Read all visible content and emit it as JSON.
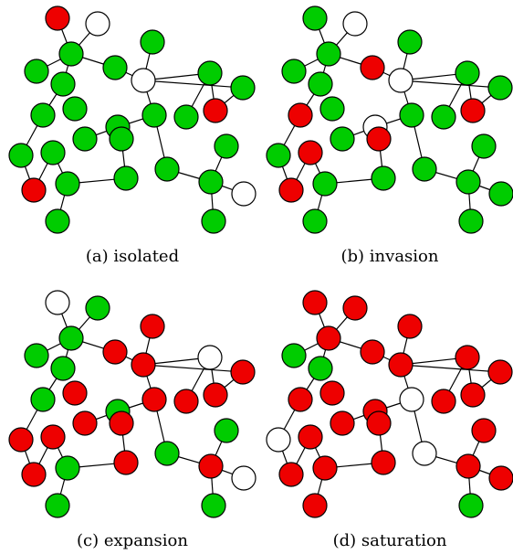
{
  "colors": {
    "infected": "#ee0000",
    "healthy": "#00cc00",
    "empty": "#ffffff",
    "edge": "#000000"
  },
  "panels": [
    {
      "id": "a",
      "caption": "(a) isolated",
      "node_states": [
        "red",
        "white",
        "green",
        "green",
        "green",
        "green",
        "white",
        "green",
        "green",
        "green",
        "green",
        "green",
        "red",
        "green",
        "green",
        "green",
        "green",
        "green",
        "green",
        "green",
        "green",
        "red",
        "green",
        "green",
        "green",
        "green",
        "green",
        "white",
        "green"
      ]
    },
    {
      "id": "b",
      "caption": "(b) invasion",
      "node_states": [
        "green",
        "white",
        "green",
        "green",
        "green",
        "green",
        "white",
        "red",
        "red",
        "green",
        "white",
        "green",
        "red",
        "green",
        "green",
        "green",
        "green",
        "red",
        "red",
        "green",
        "green",
        "red",
        "green",
        "green",
        "green",
        "green",
        "green",
        "green",
        "green"
      ]
    },
    {
      "id": "c",
      "caption": "(c) expansion",
      "node_states": [
        "white",
        "green",
        "green",
        "green",
        "green",
        "red",
        "red",
        "red",
        "green",
        "red",
        "green",
        "red",
        "red",
        "red",
        "red",
        "white",
        "red",
        "red",
        "red",
        "red",
        "green",
        "red",
        "red",
        "green",
        "red",
        "green",
        "green",
        "white",
        "green"
      ]
    },
    {
      "id": "d",
      "caption": "(d) saturation",
      "node_states": [
        "red",
        "red",
        "red",
        "green",
        "green",
        "red",
        "red",
        "red",
        "red",
        "red",
        "red",
        "white",
        "red",
        "red",
        "red",
        "red",
        "red",
        "red",
        "red",
        "white",
        "white",
        "red",
        "red",
        "red",
        "red",
        "red",
        "red",
        "red",
        "green"
      ]
    }
  ]
}
